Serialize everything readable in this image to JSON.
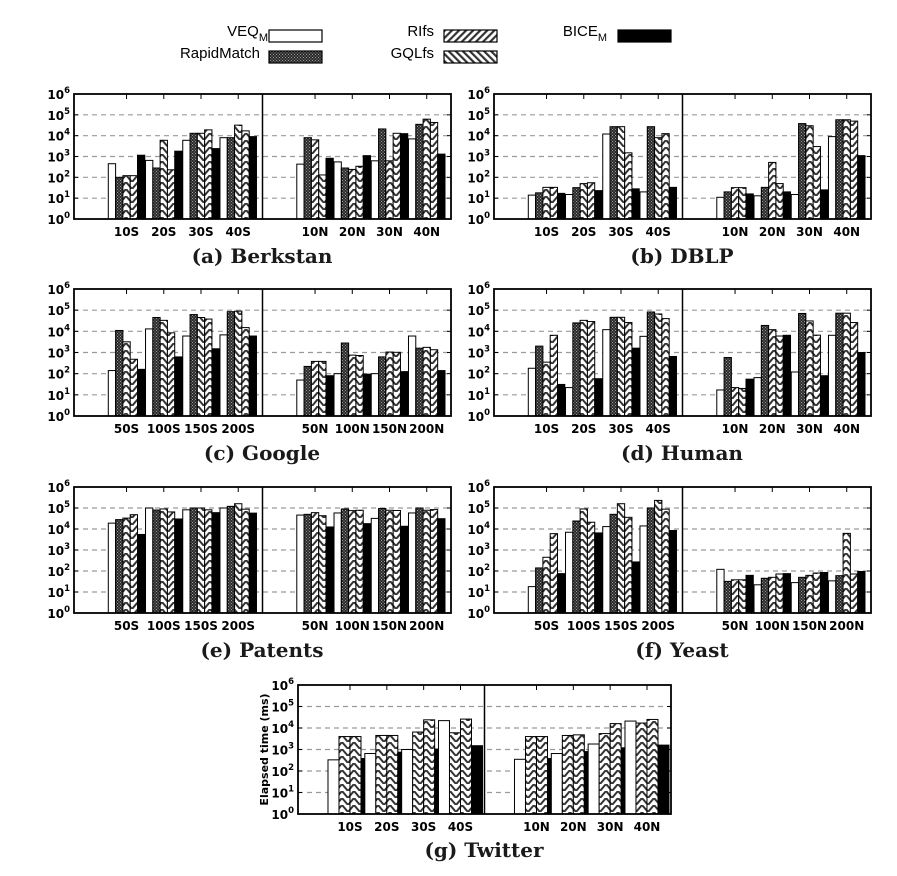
{
  "legend": {
    "entries": [
      {
        "key": "veq",
        "label": "VEQ",
        "sub": "M"
      },
      {
        "key": "rapid",
        "label": "RapidMatch",
        "sub": ""
      },
      {
        "key": "rifs",
        "label": "RIfs",
        "sub": ""
      },
      {
        "key": "gql",
        "label": "GQLfs",
        "sub": ""
      },
      {
        "key": "bice",
        "label": "BICE",
        "sub": "M"
      }
    ]
  },
  "chart_data": [
    {
      "type": "bar",
      "title": "(a) Berkstan",
      "yscale": "log",
      "ylim": [
        1,
        1000000
      ],
      "ylabel": "",
      "yticks": [
        "10^0",
        "10^1",
        "10^2",
        "10^3",
        "10^4",
        "10^5",
        "10^6"
      ],
      "grid": "horizontal-dashed",
      "groups": [
        {
          "categories": [
            "10S",
            "20S",
            "30S",
            "40S"
          ],
          "series": [
            {
              "name": "VEQ_M",
              "values": [
                450,
                650,
                6000,
                8000
              ]
            },
            {
              "name": "RapidMatch",
              "values": [
                100,
                280,
                13000,
                8000
              ]
            },
            {
              "name": "RIfs",
              "values": [
                120,
                6000,
                13000,
                32000
              ]
            },
            {
              "name": "GQLfs",
              "values": [
                120,
                230,
                19000,
                17000
              ]
            },
            {
              "name": "BICE_M",
              "values": [
                1150,
                1800,
                2400,
                9000
              ]
            }
          ]
        },
        {
          "categories": [
            "10N",
            "20N",
            "30N",
            "40N"
          ],
          "series": [
            {
              "name": "VEQ_M",
              "values": [
                430,
                550,
                620,
                7000
              ]
            },
            {
              "name": "RapidMatch",
              "values": [
                8000,
                280,
                21000,
                35000
              ]
            },
            {
              "name": "RIfs",
              "values": [
                6300,
                240,
                620,
                62000
              ]
            },
            {
              "name": "GQLfs",
              "values": [
                130,
                340,
                13000,
                43000
              ]
            },
            {
              "name": "BICE_M",
              "values": [
                820,
                1100,
                12500,
                1300
              ]
            }
          ]
        }
      ]
    },
    {
      "type": "bar",
      "title": "(b) DBLP",
      "yscale": "log",
      "ylim": [
        1,
        1000000
      ],
      "ylabel": "",
      "yticks": [
        "10^0",
        "10^1",
        "10^2",
        "10^3",
        "10^4",
        "10^5",
        "10^6"
      ],
      "grid": "horizontal-dashed",
      "groups": [
        {
          "categories": [
            "10S",
            "20S",
            "30S",
            "40S"
          ],
          "series": [
            {
              "name": "VEQ_M",
              "values": [
                14,
                15,
                12000,
                20
              ]
            },
            {
              "name": "RapidMatch",
              "values": [
                18,
                32,
                27000,
                27000
              ]
            },
            {
              "name": "RIfs",
              "values": [
                33,
                50,
                27000,
                8000
              ]
            },
            {
              "name": "GQLfs",
              "values": [
                33,
                55,
                1500,
                12500
              ]
            },
            {
              "name": "BICE_M",
              "values": [
                17,
                23,
                28,
                33
              ]
            }
          ]
        },
        {
          "categories": [
            "10N",
            "20N",
            "30N",
            "40N"
          ],
          "series": [
            {
              "name": "VEQ_M",
              "values": [
                11,
                13,
                15,
                9000
              ]
            },
            {
              "name": "RapidMatch",
              "values": [
                20,
                33,
                38000,
                58000
              ]
            },
            {
              "name": "RIfs",
              "values": [
                32,
                520,
                30000,
                58000
              ]
            },
            {
              "name": "GQLfs",
              "values": [
                32,
                50,
                3000,
                50000
              ]
            },
            {
              "name": "BICE_M",
              "values": [
                16,
                20,
                25,
                1100
              ]
            }
          ]
        }
      ]
    },
    {
      "type": "bar",
      "title": "(c) Google",
      "yscale": "log",
      "ylim": [
        1,
        1000000
      ],
      "ylabel": "",
      "yticks": [
        "10^0",
        "10^1",
        "10^2",
        "10^3",
        "10^4",
        "10^5",
        "10^6"
      ],
      "grid": "horizontal-dashed",
      "groups": [
        {
          "categories": [
            "50S",
            "100S",
            "150S",
            "200S"
          ],
          "series": [
            {
              "name": "VEQ_M",
              "values": [
                140,
                13000,
                6000,
                6800
              ]
            },
            {
              "name": "RapidMatch",
              "values": [
                11000,
                45000,
                62000,
                85000
              ]
            },
            {
              "name": "RIfs",
              "values": [
                3200,
                33000,
                45000,
                90000
              ]
            },
            {
              "name": "GQLfs",
              "values": [
                480,
                8500,
                38000,
                15000
              ]
            },
            {
              "name": "BICE_M",
              "values": [
                160,
                620,
                1500,
                6000
              ]
            }
          ]
        },
        {
          "categories": [
            "50N",
            "100N",
            "150N",
            "200N"
          ],
          "series": [
            {
              "name": "VEQ_M",
              "values": [
                50,
                100,
                100,
                6000
              ]
            },
            {
              "name": "RapidMatch",
              "values": [
                220,
                2800,
                620,
                1600
              ]
            },
            {
              "name": "RIfs",
              "values": [
                380,
                750,
                1050,
                1750
              ]
            },
            {
              "name": "GQLfs",
              "values": [
                380,
                720,
                1020,
                1350
              ]
            },
            {
              "name": "BICE_M",
              "values": [
                80,
                95,
                125,
                140
              ]
            }
          ]
        }
      ]
    },
    {
      "type": "bar",
      "title": "(d) Human",
      "yscale": "log",
      "ylim": [
        1,
        1000000
      ],
      "ylabel": "",
      "yticks": [
        "10^0",
        "10^1",
        "10^2",
        "10^3",
        "10^4",
        "10^5",
        "10^6"
      ],
      "grid": "horizontal-dashed",
      "groups": [
        {
          "categories": [
            "10S",
            "20S",
            "30S",
            "40S"
          ],
          "series": [
            {
              "name": "VEQ_M",
              "values": [
                180,
                22,
                12000,
                5800
              ]
            },
            {
              "name": "RapidMatch",
              "values": [
                2000,
                25000,
                46000,
                82000
              ]
            },
            {
              "name": "RIfs",
              "values": [
                350,
                33000,
                46000,
                66000
              ]
            },
            {
              "name": "GQLfs",
              "values": [
                6500,
                29000,
                26000,
                40000
              ]
            },
            {
              "name": "BICE_M",
              "values": [
                31,
                58,
                1600,
                650
              ]
            }
          ]
        },
        {
          "categories": [
            "10N",
            "20N",
            "30N",
            "40N"
          ],
          "series": [
            {
              "name": "VEQ_M",
              "values": [
                17,
                65,
                120,
                6500
              ]
            },
            {
              "name": "RapidMatch",
              "values": [
                580,
                19000,
                70000,
                72000
              ]
            },
            {
              "name": "RIfs",
              "values": [
                22,
                12000,
                31000,
                72000
              ]
            },
            {
              "name": "GQLfs",
              "values": [
                20,
                6000,
                6600,
                26000
              ]
            },
            {
              "name": "BICE_M",
              "values": [
                55,
                6500,
                80,
                1000
              ]
            }
          ]
        }
      ]
    },
    {
      "type": "bar",
      "title": "(e) Patents",
      "yscale": "log",
      "ylim": [
        1,
        1000000
      ],
      "ylabel": "",
      "yticks": [
        "10^0",
        "10^1",
        "10^2",
        "10^3",
        "10^4",
        "10^5",
        "10^6"
      ],
      "grid": "horizontal-dashed",
      "groups": [
        {
          "categories": [
            "50S",
            "100S",
            "150S",
            "200S"
          ],
          "series": [
            {
              "name": "VEQ_M",
              "values": [
                19000,
                100000,
                82000,
                100000
              ]
            },
            {
              "name": "RapidMatch",
              "values": [
                28000,
                80000,
                100000,
                120000
              ]
            },
            {
              "name": "RIfs",
              "values": [
                33000,
                90000,
                100000,
                160000
              ]
            },
            {
              "name": "GQLfs",
              "values": [
                48000,
                65000,
                82000,
                88000
              ]
            },
            {
              "name": "BICE_M",
              "values": [
                5500,
                30000,
                60000,
                57000
              ]
            }
          ]
        },
        {
          "categories": [
            "50N",
            "100N",
            "150N",
            "200N"
          ],
          "series": [
            {
              "name": "VEQ_M",
              "values": [
                46000,
                58000,
                32000,
                58000
              ]
            },
            {
              "name": "RapidMatch",
              "values": [
                50000,
                90000,
                95000,
                100000
              ]
            },
            {
              "name": "RIfs",
              "values": [
                60000,
                75000,
                78000,
                78000
              ]
            },
            {
              "name": "GQLfs",
              "values": [
                43000,
                78000,
                76000,
                84000
              ]
            },
            {
              "name": "BICE_M",
              "values": [
                12500,
                18000,
                13500,
                31000
              ]
            }
          ]
        }
      ]
    },
    {
      "type": "bar",
      "title": "(f) Yeast",
      "yscale": "log",
      "ylim": [
        1,
        1000000
      ],
      "ylabel": "",
      "yticks": [
        "10^0",
        "10^1",
        "10^2",
        "10^3",
        "10^4",
        "10^5",
        "10^6"
      ],
      "grid": "horizontal-dashed",
      "groups": [
        {
          "categories": [
            "50S",
            "100S",
            "150S",
            "200S"
          ],
          "series": [
            {
              "name": "VEQ_M",
              "values": [
                18,
                7000,
                13000,
                14000
              ]
            },
            {
              "name": "RapidMatch",
              "values": [
                140,
                24000,
                50000,
                100000
              ]
            },
            {
              "name": "RIfs",
              "values": [
                450,
                90000,
                160000,
                230000
              ]
            },
            {
              "name": "GQLfs",
              "values": [
                6000,
                21000,
                36000,
                88000
              ]
            },
            {
              "name": "BICE_M",
              "values": [
                75,
                6500,
                270,
                8500
              ]
            }
          ]
        },
        {
          "categories": [
            "50N",
            "100N",
            "150N",
            "200N"
          ],
          "series": [
            {
              "name": "VEQ_M",
              "values": [
                120,
                22,
                28,
                34
              ]
            },
            {
              "name": "RapidMatch",
              "values": [
                32,
                45,
                50,
                60
              ]
            },
            {
              "name": "RIfs",
              "values": [
                38,
                50,
                62,
                6200
              ]
            },
            {
              "name": "GQLfs",
              "values": [
                38,
                72,
                80,
                72
              ]
            },
            {
              "name": "BICE_M",
              "values": [
                62,
                75,
                85,
                95
              ]
            }
          ]
        }
      ]
    },
    {
      "type": "bar",
      "title": "(g) Twitter",
      "yscale": "log",
      "ylim": [
        1,
        1000000
      ],
      "ylabel": "Elapsed time (ms)",
      "yticks": [
        "10^0",
        "10^1",
        "10^2",
        "10^3",
        "10^4",
        "10^5",
        "10^6"
      ],
      "grid": "horizontal-dashed",
      "groups": [
        {
          "categories": [
            "10S",
            "20S",
            "30S",
            "40S"
          ],
          "series": [
            {
              "name": "VEQ_M",
              "values": [
                330,
                650,
                1000,
                22000
              ]
            },
            {
              "name": "RIfs",
              "values": [
                4000,
                4500,
                6500,
                6000
              ]
            },
            {
              "name": "GQLfs",
              "values": [
                4000,
                4500,
                24000,
                26000
              ]
            },
            {
              "name": "BICE_M",
              "values": [
                380,
                750,
                1050,
                1500
              ]
            }
          ]
        },
        {
          "categories": [
            "10N",
            "20N",
            "30N",
            "40N"
          ],
          "series": [
            {
              "name": "VEQ_M",
              "values": [
                350,
                650,
                1800,
                21000
              ]
            },
            {
              "name": "RIfs",
              "values": [
                4000,
                4500,
                5500,
                17000
              ]
            },
            {
              "name": "GQLfs",
              "values": [
                4000,
                4800,
                16000,
                25000
              ]
            },
            {
              "name": "BICE_M",
              "values": [
                380,
                800,
                1200,
                1600
              ]
            }
          ]
        }
      ]
    }
  ]
}
